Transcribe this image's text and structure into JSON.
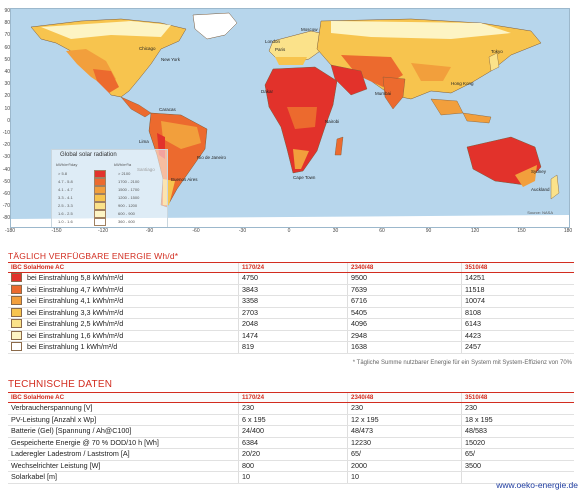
{
  "map": {
    "legend_title": "Global solar radiation",
    "legend_col1": "kWh/m²/day",
    "legend_col2": "kWh/m²/a",
    "legend_rows": [
      {
        "color": "#e2322b",
        "a": "> 5.8",
        "b": "> 2100"
      },
      {
        "color": "#ec6a2e",
        "a": "4.7 - 5.8",
        "b": "1700 - 2100"
      },
      {
        "color": "#f29f3c",
        "a": "4.1 - 4.7",
        "b": "1500 - 1700"
      },
      {
        "color": "#f7c44e",
        "a": "3.3 - 4.1",
        "b": "1200 - 1500"
      },
      {
        "color": "#fbe28a",
        "a": "2.5 - 3.3",
        "b": "900 - 1200"
      },
      {
        "color": "#fdf4c4",
        "a": "1.6 - 2.5",
        "b": "600 - 900"
      },
      {
        "color": "#ffffff",
        "a": "1.0 - 1.6",
        "b": "360 - 600"
      }
    ],
    "lat_labels": [
      "90",
      "80",
      "70",
      "60",
      "50",
      "40",
      "30",
      "20",
      "10",
      "0",
      "-10",
      "-20",
      "-30",
      "-40",
      "-50",
      "-60",
      "-70",
      "-80"
    ],
    "lon_labels": [
      "-180",
      "-150",
      "-120",
      "-90",
      "-60",
      "-30",
      "0",
      "30",
      "60",
      "90",
      "120",
      "150",
      "180"
    ],
    "cities": [
      "Chicago",
      "New York",
      "Moscow",
      "Paris",
      "London",
      "Tokyo",
      "Hong Kong",
      "Dakar",
      "Nairobi",
      "Lima",
      "Rio de Janeiro",
      "Santiago",
      "Buenos Aires",
      "Cape Town",
      "Sydney",
      "Auckland",
      "Mumbai",
      "Caracas"
    ],
    "credit": "Source: NASA"
  },
  "energy": {
    "title": "TÄGLICH VERFÜGBARE ENERGIE Wh/d*",
    "headers": [
      "IBC SolaHome AC",
      "1170/24",
      "2340/48",
      "3510/48"
    ],
    "rows": [
      {
        "color": "#e2322b",
        "label": "bei Einstrahlung 5,8 kWh/m²/d",
        "v": [
          "4750",
          "9500",
          "14251"
        ]
      },
      {
        "color": "#ec6a2e",
        "label": "bei Einstrahlung 4,7 kWh/m²/d",
        "v": [
          "3843",
          "7639",
          "11518"
        ]
      },
      {
        "color": "#f29f3c",
        "label": "bei Einstrahlung 4,1 kWh/m²/d",
        "v": [
          "3358",
          "6716",
          "10074"
        ]
      },
      {
        "color": "#f7c44e",
        "label": "bei Einstrahlung 3,3 kWh/m²/d",
        "v": [
          "2703",
          "5405",
          "8108"
        ]
      },
      {
        "color": "#fbe28a",
        "label": "bei Einstrahlung 2,5 kWh/m²/d",
        "v": [
          "2048",
          "4096",
          "6143"
        ]
      },
      {
        "color": "#fdf4c4",
        "label": "bei Einstrahlung 1,6 kWh/m²/d",
        "v": [
          "1474",
          "2948",
          "4423"
        ]
      },
      {
        "color": "#ffffff",
        "label": "bei Einstrahlung 1 kWh/m²/d",
        "v": [
          "819",
          "1638",
          "2457"
        ]
      }
    ],
    "footnote": "* Tägliche Summe nutzbarer Energie für ein System mit System-Effizienz von 70%"
  },
  "tech": {
    "title": "TECHNISCHE DATEN",
    "headers": [
      "IBC SolaHome AC",
      "1170/24",
      "2340/48",
      "3510/48"
    ],
    "rows": [
      {
        "label": "Verbraucherspannung [V]",
        "v": [
          "230",
          "230",
          "230"
        ]
      },
      {
        "label": "PV-Leistung [Anzahl x Wp]",
        "v": [
          "6 x 195",
          "12 x 195",
          "18 x 195"
        ]
      },
      {
        "label": "Batterie (Gel) [Spannung / Ah@C100]",
        "v": [
          "24/400",
          "48/473",
          "48/583"
        ]
      },
      {
        "label": "Gespeicherte Energie @ 70 % DOD/10 h [Wh]",
        "v": [
          "6384",
          "12230",
          "15020"
        ]
      },
      {
        "label": "Laderegler Ladestrom / Laststrom [A]",
        "v": [
          "20/20",
          "65/",
          "65/"
        ]
      },
      {
        "label": "Wechselrichter Leistung [W]",
        "v": [
          "800",
          "2000",
          "3500"
        ]
      },
      {
        "label": "Solarkabel [m]",
        "v": [
          "10",
          "10",
          ""
        ]
      }
    ]
  },
  "footer": {
    "url": "www.oeko-energie.de"
  }
}
